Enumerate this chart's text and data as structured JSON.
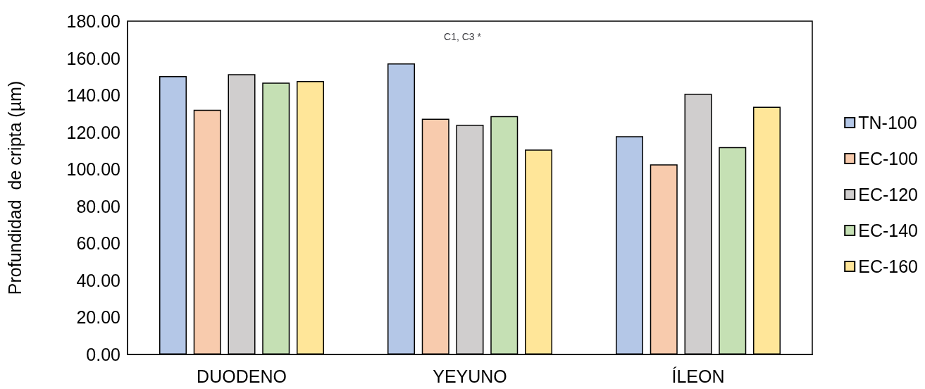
{
  "chart_data": {
    "type": "bar",
    "ylabel": "Profundidad  de cripta (µm)",
    "categories": [
      "DUODENO",
      "YEYUNO",
      "ÍLEON"
    ],
    "series": [
      {
        "name": "TN-100",
        "color": "#b4c7e7",
        "values": [
          150.3,
          157.2,
          117.9
        ]
      },
      {
        "name": "EC-100",
        "color": "#f8cbad",
        "values": [
          132.1,
          127.3,
          102.7
        ]
      },
      {
        "name": "EC-120",
        "color": "#d0cece",
        "values": [
          151.4,
          124.1,
          140.8
        ]
      },
      {
        "name": "EC-140",
        "color": "#c5e0b4",
        "values": [
          146.8,
          128.7,
          112.0
        ]
      },
      {
        "name": "EC-160",
        "color": "#ffe699",
        "values": [
          147.7,
          110.6,
          133.8
        ]
      }
    ],
    "ylim": [
      0,
      180
    ],
    "yticks": [
      {
        "value": 0,
        "label": "0.00"
      },
      {
        "value": 20,
        "label": "20.00"
      },
      {
        "value": 40,
        "label": "40.00"
      },
      {
        "value": 60,
        "label": "60.00"
      },
      {
        "value": 80,
        "label": "80.00"
      },
      {
        "value": 100,
        "label": "100.00"
      },
      {
        "value": 120,
        "label": "120.00"
      },
      {
        "value": 140,
        "label": "140.00"
      },
      {
        "value": 160,
        "label": "160.00"
      },
      {
        "value": 180,
        "label": "180.00"
      }
    ],
    "annotations": [
      "C1, C3 *"
    ],
    "grid": false,
    "legend": "right"
  }
}
